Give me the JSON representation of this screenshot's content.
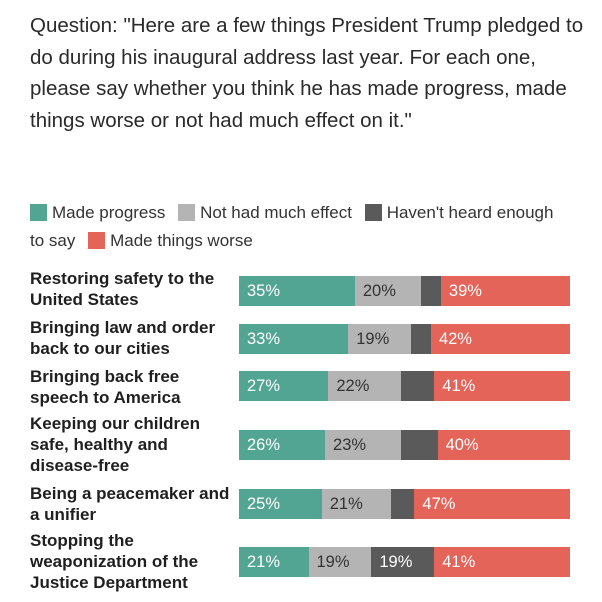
{
  "question": "Question: \"Here are a few things President Trump pledged to do during his inaugural address last year. For each one, please say whether you think he has made progress, made things worse or not had much effect on it.\"",
  "chart_data": {
    "type": "bar",
    "orientation": "horizontal",
    "stacked": true,
    "title": "",
    "xlabel": "",
    "ylabel": "",
    "xlim": [
      0,
      100
    ],
    "legend_position": "top",
    "categories": [
      "Restoring safety to the United States",
      "Bringing law and order back to our cities",
      "Bringing back free speech to America",
      "Keeping our children safe, healthy and disease-free",
      "Being a peacemaker and a unifier",
      "Stopping the weaponization of the Justice Department"
    ],
    "series": [
      {
        "name": "Made progress",
        "color": "#53a593",
        "label_color": "#ffffff",
        "values": [
          35,
          33,
          27,
          26,
          25,
          21
        ],
        "labels": [
          "35%",
          "33%",
          "27%",
          "26%",
          "25%",
          "21%"
        ]
      },
      {
        "name": "Not had much effect",
        "color": "#b4b4b4",
        "label_color": "#333333",
        "values": [
          20,
          19,
          22,
          23,
          21,
          19
        ],
        "labels": [
          "20%",
          "19%",
          "22%",
          "23%",
          "21%",
          "19%"
        ]
      },
      {
        "name": "Haven't heard enough to say",
        "color": "#5a5a5a",
        "label_color": "#ffffff",
        "values": [
          6,
          6,
          10,
          11,
          7,
          19
        ],
        "labels": [
          "",
          "",
          "",
          "",
          "",
          "19%"
        ]
      },
      {
        "name": "Made things worse",
        "color": "#e4645a",
        "label_color": "#ffffff",
        "values": [
          39,
          42,
          41,
          40,
          47,
          41
        ],
        "labels": [
          "39%",
          "42%",
          "41%",
          "40%",
          "47%",
          "41%"
        ]
      }
    ]
  },
  "legend": [
    {
      "label": "Made progress",
      "color": "#53a593"
    },
    {
      "label": "Not had much effect",
      "color": "#b4b4b4"
    },
    {
      "label": "Haven't heard enough to say",
      "color": "#5a5a5a"
    },
    {
      "label": "Made things worse",
      "color": "#e4645a"
    }
  ],
  "rows": [
    {
      "label": "Restoring safety to the United States"
    },
    {
      "label": "Bringing law and order back to our cities"
    },
    {
      "label": "Bringing back free speech to America"
    },
    {
      "label": "Keeping our children safe, healthy and disease-free"
    },
    {
      "label": "Being a peacemaker and a unifier"
    },
    {
      "label": "Stopping the weaponization of the Justice Department"
    }
  ]
}
